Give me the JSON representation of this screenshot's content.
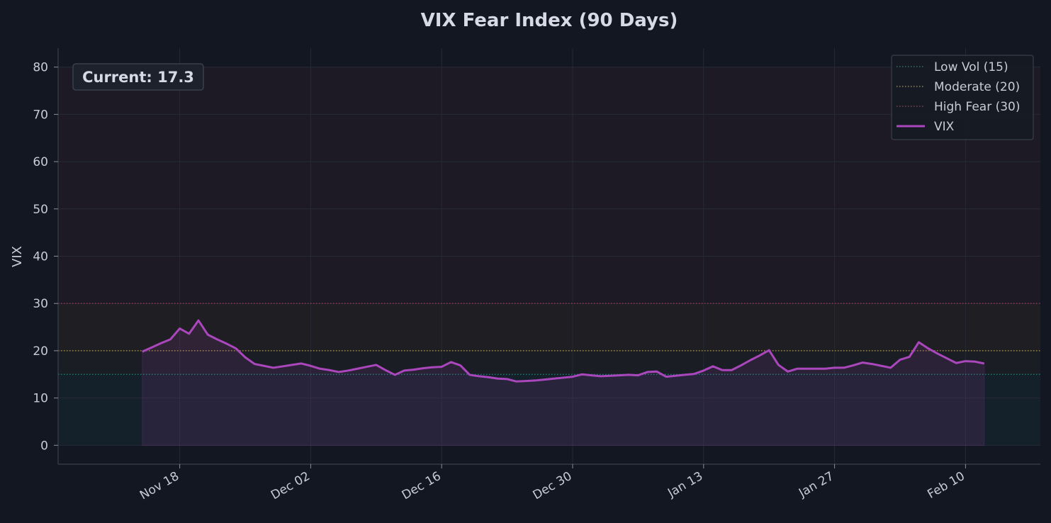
{
  "chart_data": {
    "type": "line",
    "title": "VIX Fear Index (90 Days)",
    "xlabel": "",
    "ylabel": "VIX",
    "ylim": [
      -4,
      84
    ],
    "yticks": [
      0,
      10,
      20,
      30,
      40,
      50,
      60,
      70,
      80
    ],
    "xlim": [
      "2024-11-05",
      "2025-02-18"
    ],
    "xticks": [
      {
        "date": "2024-11-18",
        "label": "Nov 18"
      },
      {
        "date": "2024-12-02",
        "label": "Dec 02"
      },
      {
        "date": "2024-12-16",
        "label": "Dec 16"
      },
      {
        "date": "2024-12-30",
        "label": "Dec 30"
      },
      {
        "date": "2025-01-13",
        "label": "Jan 13"
      },
      {
        "date": "2025-01-27",
        "label": "Jan 27"
      },
      {
        "date": "2025-02-10",
        "label": "Feb 10"
      }
    ],
    "grid": true,
    "legend_position": "top-right",
    "annotation": "Current: 17.3",
    "thresholds": [
      {
        "name": "Low Vol (15)",
        "value": 15,
        "color": "#2a8a80"
      },
      {
        "name": "Moderate (20)",
        "value": 20,
        "color": "#b39a4a"
      },
      {
        "name": "High Fear (30)",
        "value": 30,
        "color": "#a04560"
      }
    ],
    "series": [
      {
        "name": "VIX",
        "color": "#ab47bc",
        "points": [
          [
            "2024-11-14",
            19.8
          ],
          [
            "2024-11-15",
            20.7
          ],
          [
            "2024-11-16",
            21.6
          ],
          [
            "2024-11-17",
            22.4
          ],
          [
            "2024-11-18",
            24.7
          ],
          [
            "2024-11-19",
            23.6
          ],
          [
            "2024-11-20",
            26.4
          ],
          [
            "2024-11-21",
            23.4
          ],
          [
            "2024-11-22",
            22.4
          ],
          [
            "2024-11-23",
            21.5
          ],
          [
            "2024-11-24",
            20.5
          ],
          [
            "2024-11-25",
            18.6
          ],
          [
            "2024-11-26",
            17.2
          ],
          [
            "2024-11-27",
            16.8
          ],
          [
            "2024-11-28",
            16.4
          ],
          [
            "2024-11-29",
            16.7
          ],
          [
            "2024-11-30",
            17.0
          ],
          [
            "2024-12-01",
            17.3
          ],
          [
            "2024-12-02",
            16.8
          ],
          [
            "2024-12-03",
            16.2
          ],
          [
            "2024-12-04",
            15.9
          ],
          [
            "2024-12-05",
            15.5
          ],
          [
            "2024-12-06",
            15.8
          ],
          [
            "2024-12-07",
            16.2
          ],
          [
            "2024-12-08",
            16.6
          ],
          [
            "2024-12-09",
            17.0
          ],
          [
            "2024-12-10",
            15.9
          ],
          [
            "2024-12-11",
            14.9
          ],
          [
            "2024-12-12",
            15.8
          ],
          [
            "2024-12-13",
            16.0
          ],
          [
            "2024-12-14",
            16.3
          ],
          [
            "2024-12-15",
            16.5
          ],
          [
            "2024-12-16",
            16.6
          ],
          [
            "2024-12-17",
            17.6
          ],
          [
            "2024-12-18",
            16.9
          ],
          [
            "2024-12-19",
            14.9
          ],
          [
            "2024-12-20",
            14.6
          ],
          [
            "2024-12-21",
            14.4
          ],
          [
            "2024-12-22",
            14.1
          ],
          [
            "2024-12-23",
            14.0
          ],
          [
            "2024-12-24",
            13.5
          ],
          [
            "2024-12-25",
            13.6
          ],
          [
            "2024-12-26",
            13.7
          ],
          [
            "2024-12-27",
            13.9
          ],
          [
            "2024-12-28",
            14.1
          ],
          [
            "2024-12-29",
            14.3
          ],
          [
            "2024-12-30",
            14.5
          ],
          [
            "2024-12-31",
            15.0
          ],
          [
            "2025-01-01",
            14.8
          ],
          [
            "2025-01-02",
            14.6
          ],
          [
            "2025-01-03",
            14.7
          ],
          [
            "2025-01-04",
            14.8
          ],
          [
            "2025-01-05",
            14.9
          ],
          [
            "2025-01-06",
            14.8
          ],
          [
            "2025-01-07",
            15.5
          ],
          [
            "2025-01-08",
            15.6
          ],
          [
            "2025-01-09",
            14.5
          ],
          [
            "2025-01-10",
            14.7
          ],
          [
            "2025-01-11",
            14.9
          ],
          [
            "2025-01-12",
            15.1
          ],
          [
            "2025-01-13",
            15.8
          ],
          [
            "2025-01-14",
            16.7
          ],
          [
            "2025-01-15",
            15.9
          ],
          [
            "2025-01-16",
            15.9
          ],
          [
            "2025-01-17",
            16.9
          ],
          [
            "2025-01-18",
            18.0
          ],
          [
            "2025-01-19",
            19.0
          ],
          [
            "2025-01-20",
            20.1
          ],
          [
            "2025-01-21",
            17.0
          ],
          [
            "2025-01-22",
            15.6
          ],
          [
            "2025-01-23",
            16.2
          ],
          [
            "2025-01-24",
            16.2
          ],
          [
            "2025-01-25",
            16.2
          ],
          [
            "2025-01-26",
            16.2
          ],
          [
            "2025-01-27",
            16.4
          ],
          [
            "2025-01-28",
            16.4
          ],
          [
            "2025-01-29",
            16.9
          ],
          [
            "2025-01-30",
            17.5
          ],
          [
            "2025-01-31",
            17.2
          ],
          [
            "2025-02-01",
            16.8
          ],
          [
            "2025-02-02",
            16.4
          ],
          [
            "2025-02-03",
            18.1
          ],
          [
            "2025-02-04",
            18.7
          ],
          [
            "2025-02-05",
            21.8
          ],
          [
            "2025-02-06",
            20.5
          ],
          [
            "2025-02-07",
            19.4
          ],
          [
            "2025-02-08",
            18.4
          ],
          [
            "2025-02-09",
            17.4
          ],
          [
            "2025-02-10",
            17.8
          ],
          [
            "2025-02-11",
            17.7
          ],
          [
            "2025-02-12",
            17.3
          ]
        ]
      }
    ]
  }
}
